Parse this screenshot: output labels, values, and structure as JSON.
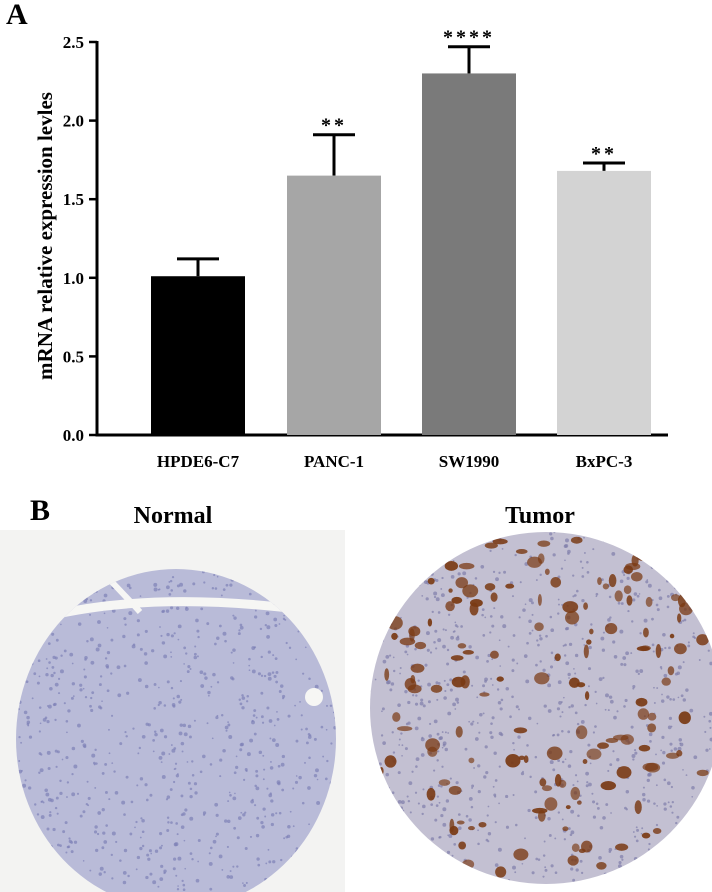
{
  "panel_a_label": "A",
  "panel_b_label": "B",
  "chart_data": {
    "type": "bar",
    "ylabel": "mRNA relative expression levles",
    "xlabel": "",
    "ylim": [
      0,
      2.5
    ],
    "yticks": [
      "0.0",
      "0.5",
      "1.0",
      "1.5",
      "2.0",
      "2.5"
    ],
    "categories": [
      "HPDE6-C7",
      "PANC-1",
      "SW1990",
      "BxPC-3"
    ],
    "values": [
      1.01,
      1.65,
      2.3,
      1.68
    ],
    "errors": [
      0.11,
      0.26,
      0.17,
      0.05
    ],
    "significance": [
      "",
      "**",
      "****",
      "**"
    ],
    "colors": [
      "#000000",
      "#a6a6a6",
      "#7a7a7a",
      "#d3d3d3"
    ],
    "grid": false
  },
  "ihc": {
    "normal_title": "Normal",
    "tumor_title": "Tumor",
    "normal_colors": {
      "tissue": "#b9bbd8",
      "nuclei": "#7d80b6",
      "background": "#f3f3f2"
    },
    "tumor_colors": {
      "tissue": "#c3c0d2",
      "nuclei": "#7f7eaa",
      "stain": "#7a3a14"
    }
  }
}
